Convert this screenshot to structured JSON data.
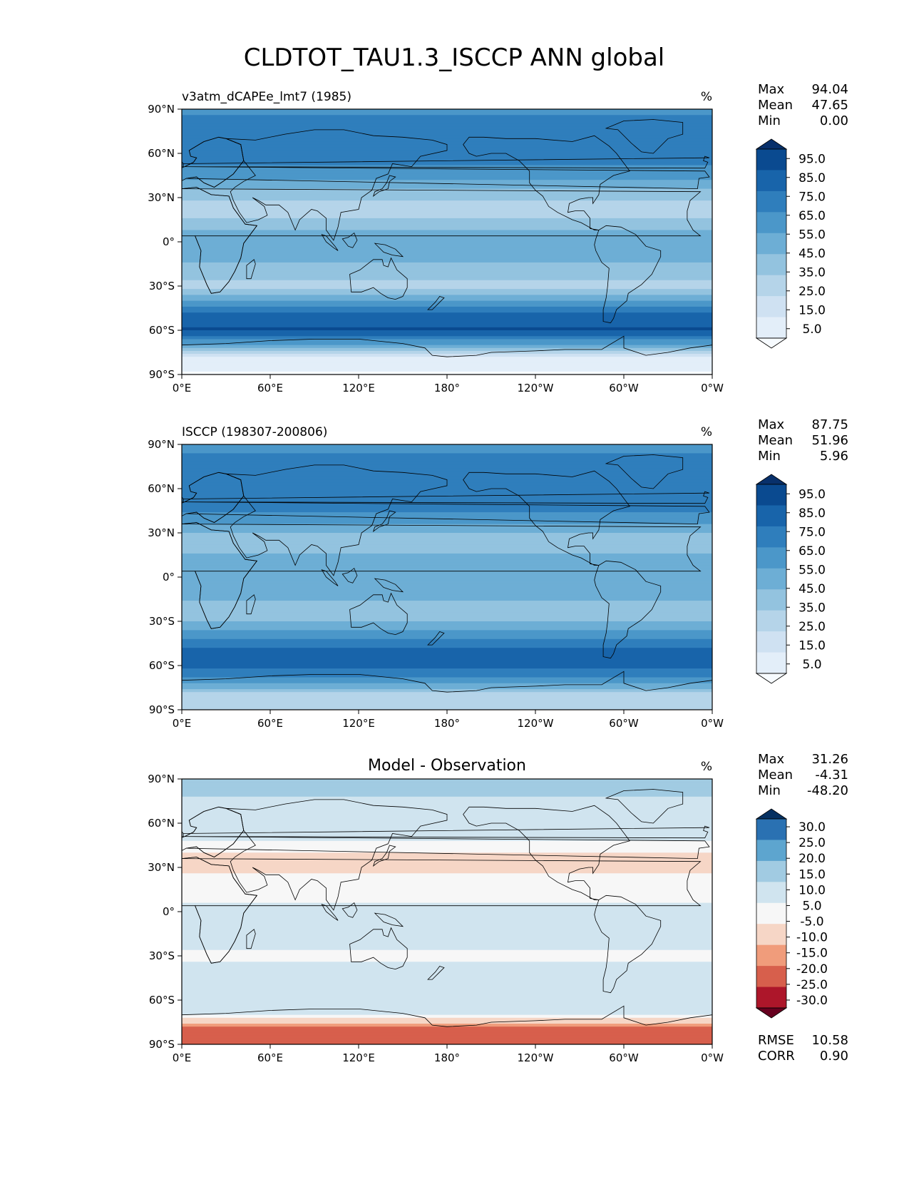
{
  "figure_title": "CLDTOT_TAU1.3_ISCCP ANN global",
  "colors": {
    "blues": [
      "#f7fbff",
      "#e3eef9",
      "#cfe1f2",
      "#b5d4e9",
      "#93c3df",
      "#6daed5",
      "#4b97c9",
      "#2f7ebc",
      "#1864aa",
      "#0a4a90",
      "#08306b"
    ],
    "diff": [
      "#67001f",
      "#ad162a",
      "#d75f4c",
      "#f09c7b",
      "#f6d6c6",
      "#f7f7f7",
      "#d0e4ef",
      "#a1cbe2",
      "#5da5cf",
      "#2a71b2",
      "#053061"
    ],
    "land_line": "#000000"
  },
  "chart_data": [
    {
      "type": "heatmap",
      "name": "model",
      "title_left": "v3atm_dCAPEe_lmt7 (1985)",
      "title_center": "",
      "units": "%",
      "xticks": [
        "0°E",
        "60°E",
        "120°E",
        "180°",
        "120°W",
        "60°W",
        "0°W"
      ],
      "yticks": [
        "90°N",
        "60°N",
        "30°N",
        "0°",
        "30°S",
        "60°S",
        "90°S"
      ],
      "xlim": [
        0,
        360
      ],
      "ylim": [
        -90,
        90
      ],
      "stats": [
        [
          "Max",
          "94.04"
        ],
        [
          "Mean",
          "47.65"
        ],
        [
          "Min",
          "0.00"
        ]
      ],
      "colorbar_labels": [
        "95.0",
        "85.0",
        "75.0",
        "65.0",
        "55.0",
        "45.0",
        "35.0",
        "25.0",
        "15.0",
        "5.0"
      ],
      "colorbar_levels": [
        0,
        5,
        15,
        25,
        35,
        45,
        55,
        65,
        75,
        85,
        95,
        100
      ],
      "zonal_profile": {
        "lat": [
          90,
          80,
          70,
          60,
          50,
          40,
          30,
          20,
          10,
          0,
          -10,
          -20,
          -30,
          -40,
          -50,
          -60,
          -70,
          -80,
          -90
        ],
        "value": [
          60,
          72,
          70,
          70,
          64,
          52,
          36,
          30,
          42,
          52,
          50,
          38,
          32,
          55,
          82,
          86,
          55,
          8,
          4
        ]
      }
    },
    {
      "type": "heatmap",
      "name": "obs",
      "title_left": "ISCCP (198307-200806)",
      "title_center": "",
      "units": "%",
      "xticks": [
        "0°E",
        "60°E",
        "120°E",
        "180°",
        "120°W",
        "60°W",
        "0°W"
      ],
      "yticks": [
        "90°N",
        "60°N",
        "30°N",
        "0°",
        "30°S",
        "60°S",
        "90°S"
      ],
      "xlim": [
        0,
        360
      ],
      "ylim": [
        -90,
        90
      ],
      "stats": [
        [
          "Max",
          "87.75"
        ],
        [
          "Mean",
          "51.96"
        ],
        [
          "Min",
          "5.96"
        ]
      ],
      "colorbar_labels": [
        "95.0",
        "85.0",
        "75.0",
        "65.0",
        "55.0",
        "45.0",
        "35.0",
        "25.0",
        "15.0",
        "5.0"
      ],
      "colorbar_levels": [
        0,
        5,
        15,
        25,
        35,
        45,
        55,
        65,
        75,
        85,
        95,
        100
      ],
      "zonal_profile": {
        "lat": [
          90,
          80,
          70,
          60,
          50,
          40,
          30,
          20,
          10,
          0,
          -10,
          -20,
          -30,
          -40,
          -50,
          -60,
          -70,
          -80,
          -90
        ],
        "value": [
          55,
          70,
          68,
          68,
          70,
          60,
          45,
          40,
          50,
          55,
          50,
          42,
          45,
          62,
          78,
          80,
          60,
          30,
          25
        ]
      }
    },
    {
      "type": "heatmap",
      "name": "diff",
      "title_left": "",
      "title_center": "Model - Observation",
      "units": "%",
      "xticks": [
        "0°E",
        "60°E",
        "120°E",
        "180°",
        "120°W",
        "60°W",
        "0°W"
      ],
      "yticks": [
        "90°N",
        "60°N",
        "30°N",
        "0°",
        "30°S",
        "60°S",
        "90°S"
      ],
      "xlim": [
        0,
        360
      ],
      "ylim": [
        -90,
        90
      ],
      "stats": [
        [
          "Max",
          "31.26"
        ],
        [
          "Mean",
          "-4.31"
        ],
        [
          "Min",
          "-48.20"
        ]
      ],
      "extra_stats": [
        [
          "RMSE",
          "10.58"
        ],
        [
          "CORR",
          "0.90"
        ]
      ],
      "colorbar_labels": [
        "30.0",
        "25.0",
        "20.0",
        "15.0",
        "10.0",
        "5.0",
        "-5.0",
        "-10.0",
        "-15.0",
        "-20.0",
        "-25.0",
        "-30.0"
      ],
      "colorbar_levels": [
        -35,
        -30,
        -25,
        -20,
        -15,
        -10,
        -5,
        5,
        10,
        15,
        20,
        25,
        30,
        35
      ],
      "zonal_profile": {
        "lat": [
          90,
          80,
          70,
          60,
          50,
          40,
          30,
          20,
          10,
          0,
          -10,
          -20,
          -30,
          -40,
          -50,
          -60,
          -70,
          -80,
          -90
        ],
        "value": [
          8,
          6,
          0,
          -2,
          -4,
          -10,
          -12,
          -8,
          -6,
          -4,
          -2,
          -3,
          -6,
          -4,
          2,
          2,
          -4,
          -25,
          -20
        ]
      }
    }
  ]
}
